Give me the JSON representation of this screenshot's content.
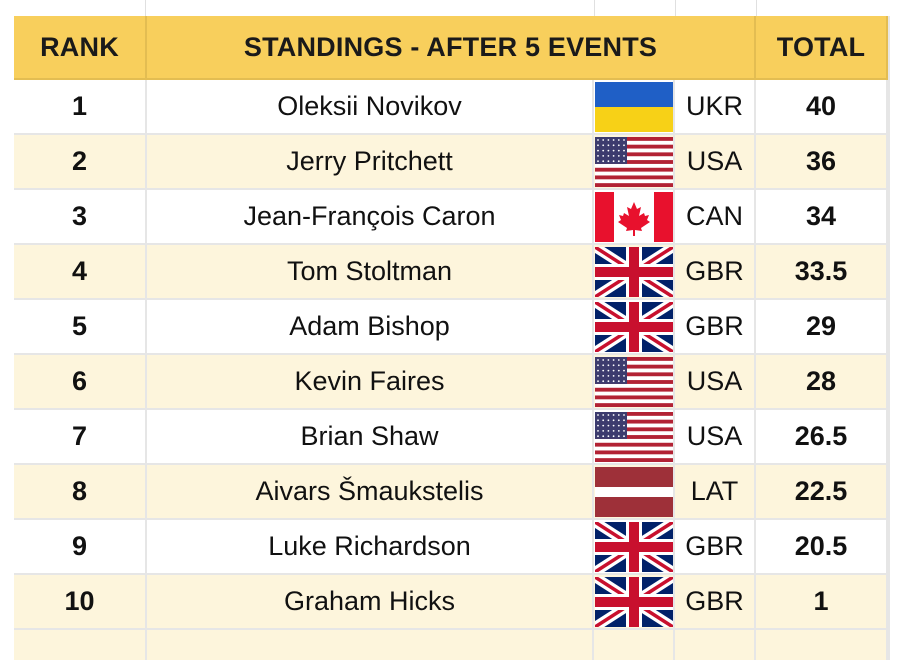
{
  "header": {
    "rank": "RANK",
    "standings": "STANDINGS - AFTER 5 EVENTS",
    "total": "TOTAL"
  },
  "colors": {
    "header_bg": "#f8cf5c",
    "alt_row_bg": "#fdf5dc"
  },
  "rows": [
    {
      "rank": "1",
      "name": "Oleksii Novikov",
      "code": "UKR",
      "total": "40",
      "flag": "ukraine-flag-icon"
    },
    {
      "rank": "2",
      "name": "Jerry Pritchett",
      "code": "USA",
      "total": "36",
      "flag": "usa-flag-icon"
    },
    {
      "rank": "3",
      "name": "Jean-François Caron",
      "code": "CAN",
      "total": "34",
      "flag": "canada-flag-icon"
    },
    {
      "rank": "4",
      "name": "Tom Stoltman",
      "code": "GBR",
      "total": "33.5",
      "flag": "uk-flag-icon"
    },
    {
      "rank": "5",
      "name": "Adam Bishop",
      "code": "GBR",
      "total": "29",
      "flag": "uk-flag-icon"
    },
    {
      "rank": "6",
      "name": "Kevin Faires",
      "code": "USA",
      "total": "28",
      "flag": "usa-flag-icon"
    },
    {
      "rank": "7",
      "name": "Brian Shaw",
      "code": "USA",
      "total": "26.5",
      "flag": "usa-flag-icon"
    },
    {
      "rank": "8",
      "name": "Aivars Šmaukstelis",
      "code": "LAT",
      "total": "22.5",
      "flag": "latvia-flag-icon"
    },
    {
      "rank": "9",
      "name": "Luke Richardson",
      "code": "GBR",
      "total": "20.5",
      "flag": "uk-flag-icon"
    },
    {
      "rank": "10",
      "name": "Graham Hicks",
      "code": "GBR",
      "total": "1",
      "flag": "uk-flag-icon"
    }
  ]
}
